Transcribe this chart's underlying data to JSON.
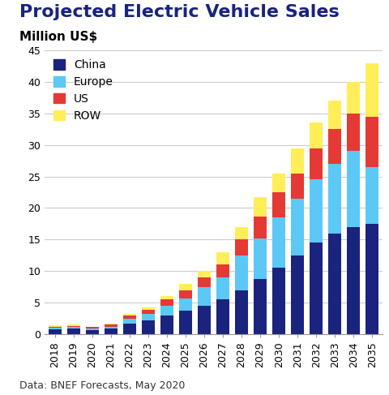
{
  "title": "Projected Electric Vehicle Sales",
  "subtitle": "Million US$",
  "source": "Data: BNEF Forecasts, May 2020",
  "years": [
    2018,
    2019,
    2020,
    2021,
    2022,
    2023,
    2024,
    2025,
    2026,
    2027,
    2028,
    2029,
    2030,
    2031,
    2032,
    2033,
    2034,
    2035
  ],
  "china": [
    0.8,
    0.9,
    0.7,
    0.9,
    1.7,
    2.2,
    3.0,
    3.7,
    4.5,
    5.5,
    7.0,
    8.7,
    10.5,
    12.5,
    14.5,
    16.0,
    17.0,
    17.5
  ],
  "europe": [
    0.2,
    0.2,
    0.2,
    0.3,
    0.7,
    1.0,
    1.5,
    2.0,
    3.0,
    3.5,
    5.5,
    6.5,
    8.0,
    9.0,
    10.0,
    11.0,
    12.0,
    9.0
  ],
  "us": [
    0.2,
    0.2,
    0.2,
    0.3,
    0.5,
    0.7,
    1.0,
    1.3,
    1.5,
    2.0,
    2.5,
    3.5,
    4.0,
    4.0,
    5.0,
    5.5,
    6.0,
    8.0
  ],
  "row": [
    0.2,
    0.2,
    0.1,
    0.2,
    0.3,
    0.3,
    0.5,
    1.0,
    1.0,
    2.0,
    2.0,
    3.0,
    3.0,
    4.0,
    4.0,
    4.5,
    5.0,
    8.5
  ],
  "china_color": "#1a237e",
  "europe_color": "#5bc8f5",
  "us_color": "#e53935",
  "row_color": "#ffee58",
  "ylim": [
    0,
    45
  ],
  "yticks": [
    0,
    5,
    10,
    15,
    20,
    25,
    30,
    35,
    40,
    45
  ],
  "title_fontsize": 16,
  "subtitle_fontsize": 11,
  "legend_fontsize": 10,
  "tick_fontsize": 9,
  "source_fontsize": 9,
  "background_color": "#ffffff",
  "grid_color": "#cccccc"
}
